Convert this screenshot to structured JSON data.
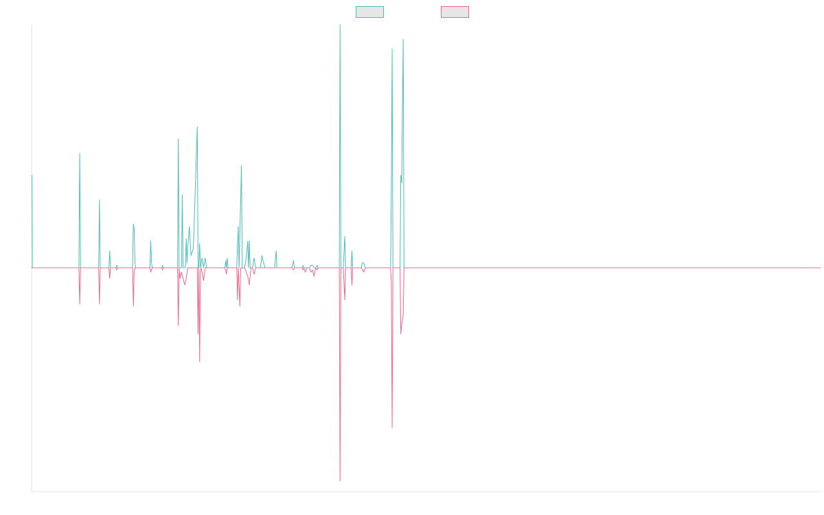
{
  "colors": {
    "background": "#ffffff",
    "axis": "#e3e3e3",
    "series_teal": "#4bbfb9",
    "series_pink": "#f2668b",
    "legend_fill": "#e6e6e6"
  },
  "chart_data": {
    "type": "line",
    "title": "",
    "xlabel": "",
    "ylabel": "",
    "grid": false,
    "legend": "top-center",
    "xlim": [
      0,
      1000
    ],
    "ylim": [
      -1.05,
      1.0
    ],
    "baseline": 0,
    "series": [
      {
        "color": "#4bbfb9",
        "points": [
          [
            0,
            0.38
          ],
          [
            0.6,
            0.38
          ],
          [
            1,
            0
          ],
          [
            13,
            0
          ],
          [
            60,
            0
          ],
          [
            61,
            0.47
          ],
          [
            62,
            0
          ],
          [
            75,
            0
          ],
          [
            85,
            0
          ],
          [
            86,
            0.28
          ],
          [
            87,
            0
          ],
          [
            98,
            0
          ],
          [
            99,
            0.07
          ],
          [
            100,
            0
          ],
          [
            107,
            0
          ],
          [
            108,
            0.01
          ],
          [
            109,
            0
          ],
          [
            124,
            0
          ],
          [
            128,
            0
          ],
          [
            129,
            0.18
          ],
          [
            130,
            0.16
          ],
          [
            131,
            0.02
          ],
          [
            132,
            0
          ],
          [
            137,
            0
          ],
          [
            150,
            0
          ],
          [
            151,
            0.11
          ],
          [
            152,
            0.02
          ],
          [
            153,
            0
          ],
          [
            165,
            0
          ],
          [
            166,
            0.01
          ],
          [
            167,
            0
          ],
          [
            170,
            0
          ],
          [
            178,
            0
          ],
          [
            185,
            0
          ],
          [
            186,
            0.53
          ],
          [
            187,
            0
          ],
          [
            190,
            0
          ],
          [
            191,
            0.3
          ],
          [
            192,
            0
          ],
          [
            195,
            0
          ],
          [
            196,
            0.12
          ],
          [
            197,
            0.02
          ],
          [
            198,
            0.09
          ],
          [
            200,
            0.17
          ],
          [
            202,
            0.05
          ],
          [
            205,
            0.08
          ],
          [
            210,
            0.58
          ],
          [
            211,
            0
          ],
          [
            212,
            0
          ],
          [
            213,
            0.1
          ],
          [
            214,
            0
          ],
          [
            216,
            0.04
          ],
          [
            218,
            0
          ],
          [
            220,
            0.04
          ],
          [
            222,
            0
          ],
          [
            225,
            0
          ],
          [
            245,
            0
          ],
          [
            246,
            0.03
          ],
          [
            247,
            0
          ],
          [
            248,
            0.04
          ],
          [
            249,
            0
          ],
          [
            260,
            0
          ],
          [
            261,
            0.1
          ],
          [
            262,
            0.17
          ],
          [
            263,
            0
          ],
          [
            266,
            0.42
          ],
          [
            267,
            0
          ],
          [
            270,
            0
          ],
          [
            272,
            0.04
          ],
          [
            274,
            0.11
          ],
          [
            275,
            0
          ],
          [
            276,
            0.11
          ],
          [
            277,
            0
          ],
          [
            280,
            0
          ],
          [
            282,
            0.04
          ],
          [
            284,
            0
          ],
          [
            290,
            0
          ],
          [
            292,
            0.05
          ],
          [
            294,
            0.02
          ],
          [
            296,
            0
          ],
          [
            308,
            0
          ],
          [
            310,
            0.07
          ],
          [
            311,
            0
          ],
          [
            320,
            0
          ],
          [
            330,
            0
          ],
          [
            332,
            0.03
          ],
          [
            333,
            0
          ],
          [
            343,
            0
          ],
          [
            344,
            0.01
          ],
          [
            345,
            0
          ],
          [
            352,
            0
          ],
          [
            354,
            0.01
          ],
          [
            356,
            0.01
          ],
          [
            358,
            0
          ],
          [
            360,
            0
          ],
          [
            362,
            0.01
          ],
          [
            363,
            0
          ],
          [
            370,
            0
          ],
          [
            380,
            0
          ],
          [
            381,
            0
          ],
          [
            390,
            0
          ],
          [
            391,
            1.0
          ],
          [
            392,
            0
          ],
          [
            395,
            0
          ],
          [
            397,
            0.13
          ],
          [
            398,
            0
          ],
          [
            405,
            0
          ],
          [
            406,
            0.07
          ],
          [
            407,
            0
          ],
          [
            418,
            0
          ],
          [
            419,
            0.02
          ],
          [
            421,
            0.02
          ],
          [
            423,
            0
          ],
          [
            430,
            0
          ],
          [
            455,
            0
          ],
          [
            456,
            0.32
          ],
          [
            457,
            0.9
          ],
          [
            458,
            0
          ],
          [
            467,
            0
          ],
          [
            468,
            0.38
          ],
          [
            469,
            0.35
          ],
          [
            471,
            0.94
          ],
          [
            472,
            0
          ],
          [
            500,
            0
          ],
          [
            700,
            0
          ],
          [
            1000,
            0
          ]
        ]
      },
      {
        "color": "#f2668b",
        "points": [
          [
            0,
            0
          ],
          [
            1,
            0
          ],
          [
            13,
            0
          ],
          [
            60,
            0
          ],
          [
            61,
            -0.17
          ],
          [
            62,
            0
          ],
          [
            75,
            0
          ],
          [
            85,
            0
          ],
          [
            86,
            -0.17
          ],
          [
            87,
            0
          ],
          [
            98,
            0
          ],
          [
            99,
            -0.05
          ],
          [
            100,
            0
          ],
          [
            107,
            0
          ],
          [
            108,
            -0.01
          ],
          [
            109,
            0
          ],
          [
            124,
            0
          ],
          [
            128,
            0
          ],
          [
            129,
            -0.18
          ],
          [
            130,
            -0.02
          ],
          [
            131,
            0
          ],
          [
            132,
            0
          ],
          [
            137,
            0
          ],
          [
            150,
            0
          ],
          [
            151,
            -0.02
          ],
          [
            152,
            -0.01
          ],
          [
            153,
            0
          ],
          [
            165,
            0
          ],
          [
            166,
            -0.01
          ],
          [
            167,
            0
          ],
          [
            170,
            0
          ],
          [
            178,
            0
          ],
          [
            185,
            0
          ],
          [
            186,
            -0.27
          ],
          [
            187,
            0
          ],
          [
            188,
            -0.05
          ],
          [
            190,
            -0.02
          ],
          [
            192,
            -0.05
          ],
          [
            194,
            -0.08
          ],
          [
            196,
            -0.05
          ],
          [
            198,
            0
          ],
          [
            210,
            0
          ],
          [
            211,
            -0.31
          ],
          [
            212,
            0
          ],
          [
            213,
            -0.44
          ],
          [
            214,
            -0.02
          ],
          [
            215,
            0
          ],
          [
            218,
            -0.06
          ],
          [
            220,
            0
          ],
          [
            225,
            0
          ],
          [
            245,
            0
          ],
          [
            247,
            -0.03
          ],
          [
            248,
            0
          ],
          [
            260,
            0
          ],
          [
            261,
            -0.15
          ],
          [
            262,
            0
          ],
          [
            264,
            -0.18
          ],
          [
            265,
            0
          ],
          [
            266,
            0
          ],
          [
            270,
            0
          ],
          [
            272,
            -0.02
          ],
          [
            274,
            -0.04
          ],
          [
            276,
            -0.08
          ],
          [
            278,
            0
          ],
          [
            280,
            0
          ],
          [
            282,
            -0.03
          ],
          [
            284,
            0
          ],
          [
            290,
            0
          ],
          [
            300,
            0
          ],
          [
            330,
            0
          ],
          [
            332,
            -0.01
          ],
          [
            333,
            0
          ],
          [
            343,
            0
          ],
          [
            344,
            -0.01
          ],
          [
            345,
            0
          ],
          [
            347,
            -0.02
          ],
          [
            349,
            0
          ],
          [
            352,
            0
          ],
          [
            354,
            -0.02
          ],
          [
            356,
            -0.01
          ],
          [
            358,
            -0.04
          ],
          [
            360,
            0
          ],
          [
            362,
            -0.01
          ],
          [
            363,
            0
          ],
          [
            370,
            0
          ],
          [
            381,
            0
          ],
          [
            390,
            0
          ],
          [
            391,
            -1.0
          ],
          [
            392,
            0
          ],
          [
            395,
            0
          ],
          [
            397,
            -0.15
          ],
          [
            398,
            0
          ],
          [
            405,
            0
          ],
          [
            406,
            -0.08
          ],
          [
            407,
            0
          ],
          [
            418,
            0
          ],
          [
            421,
            -0.02
          ],
          [
            423,
            0
          ],
          [
            430,
            0
          ],
          [
            455,
            0
          ],
          [
            456,
            -0.07
          ],
          [
            457,
            -0.75
          ],
          [
            458,
            0
          ],
          [
            467,
            0
          ],
          [
            468,
            -0.31
          ],
          [
            469,
            -0.27
          ],
          [
            471,
            -0.22
          ],
          [
            472,
            0
          ],
          [
            500,
            0
          ],
          [
            700,
            0
          ],
          [
            1000,
            0
          ]
        ]
      }
    ]
  }
}
